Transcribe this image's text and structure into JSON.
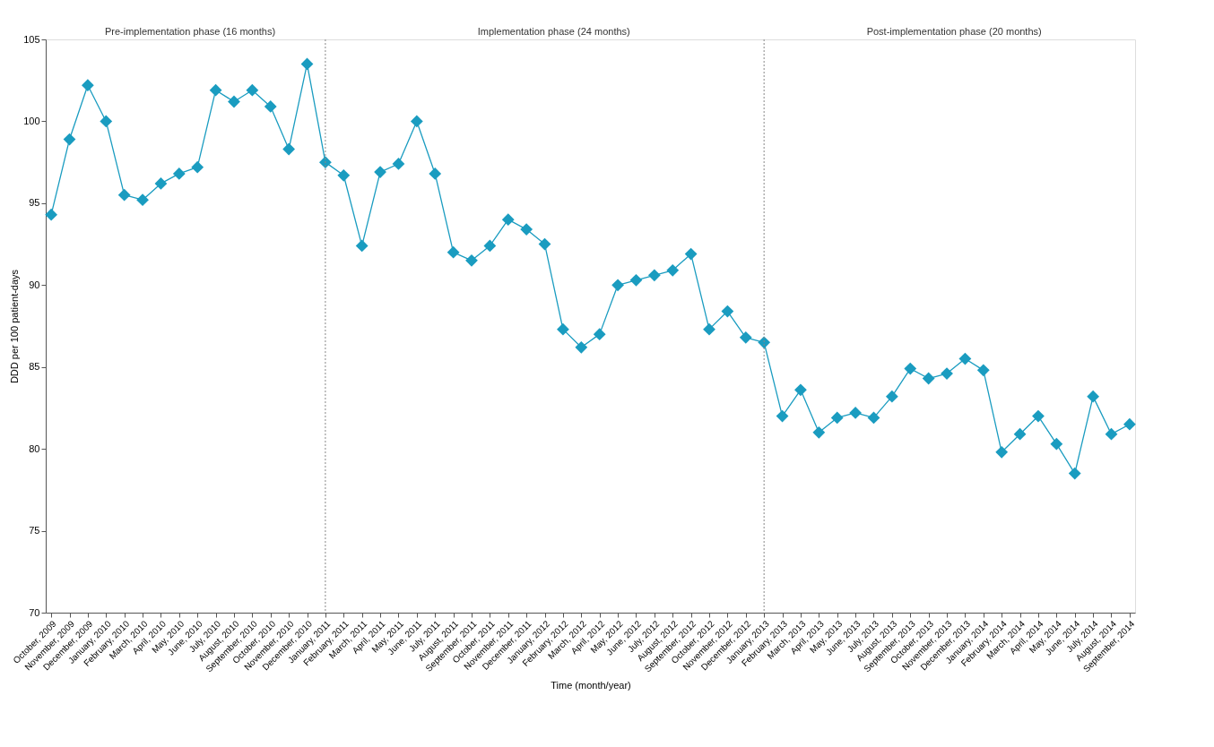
{
  "chart_data": {
    "type": "line",
    "xlabel": "Time (month/year)",
    "ylabel": "DDD per 100 patient-days",
    "categories": [
      "October, 2009",
      "November, 2009",
      "December, 2009",
      "January, 2010",
      "February, 2010",
      "March, 2010",
      "April, 2010",
      "May, 2010",
      "June, 2010",
      "July, 2010",
      "August, 2010",
      "September, 2010",
      "October, 2010",
      "November, 2010",
      "December, 2010",
      "January, 2011",
      "February, 2011",
      "March, 2011",
      "April, 2011",
      "May, 2011",
      "June, 2011",
      "July, 2011",
      "August, 2011",
      "September, 2011",
      "October, 2011",
      "November, 2011",
      "December, 2011",
      "January, 2012",
      "February, 2012",
      "March, 2012",
      "April, 2012",
      "May, 2012",
      "June, 2012",
      "July, 2012",
      "August, 2012",
      "September, 2012",
      "October, 2012",
      "November, 2012",
      "December, 2012",
      "January, 2013",
      "February, 2013",
      "March, 2013",
      "April, 2013",
      "May, 2013",
      "June, 2013",
      "July, 2013",
      "August, 2013",
      "September, 2013",
      "October, 2013",
      "November, 2013",
      "December, 2013",
      "January, 2014",
      "February, 2014",
      "March, 2014",
      "April, 2014",
      "May, 2014",
      "June, 2014",
      "July, 2014",
      "August, 2014",
      "September, 2014"
    ],
    "series": [
      {
        "color": "#1a9cc0",
        "values": [
          94.3,
          98.9,
          102.2,
          100.0,
          95.5,
          95.2,
          96.2,
          96.8,
          97.2,
          101.9,
          101.2,
          101.9,
          100.9,
          98.3,
          103.5,
          97.5,
          96.7,
          92.4,
          96.9,
          97.4,
          100.0,
          96.8,
          92.0,
          91.5,
          92.4,
          94.0,
          93.4,
          92.5,
          87.3,
          86.2,
          87.0,
          90.0,
          90.3,
          90.6,
          90.9,
          91.9,
          87.3,
          88.4,
          86.8,
          86.5,
          82.0,
          83.6,
          81.0,
          81.9,
          82.2,
          81.9,
          83.2,
          84.9,
          84.3,
          84.6,
          85.5,
          84.8,
          79.8,
          80.9,
          82.0,
          80.3,
          78.5,
          83.2,
          80.9,
          81.5
        ]
      }
    ],
    "ylim": [
      70,
      105
    ],
    "yticks": [
      70,
      75,
      80,
      85,
      90,
      95,
      100,
      105
    ],
    "ref_lines": [
      {
        "axis": "x",
        "value": "January, 2011",
        "color": "#888888",
        "line_style": "dotted"
      },
      {
        "axis": "x",
        "value": "January, 2013",
        "color": "#888888",
        "line_style": "dotted"
      }
    ],
    "annotations": [
      "Pre-implementation phase (16 months)",
      "Implementation phase (24 months)",
      "Post-implementation phase (20 months)"
    ],
    "marker": "diamond",
    "line_style": "solid"
  }
}
